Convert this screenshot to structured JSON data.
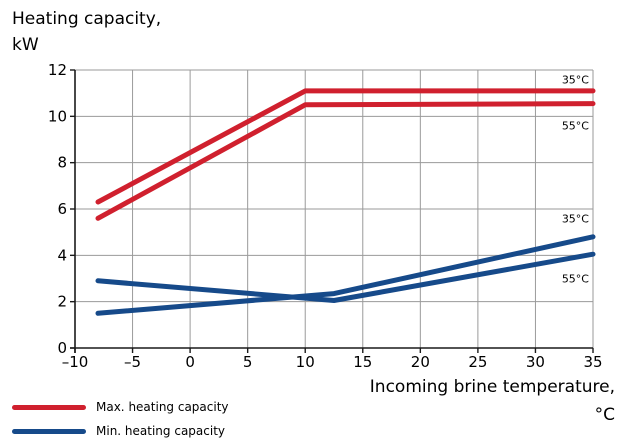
{
  "chart_data": {
    "type": "line",
    "ylabel_lines": [
      "Heating capacity,",
      "kW"
    ],
    "xlabel_lines": [
      "Incoming brine temperature,",
      "°C"
    ],
    "xlim": [
      -10,
      35
    ],
    "ylim": [
      0,
      12
    ],
    "xticks": [
      -10,
      -5,
      0,
      5,
      10,
      15,
      20,
      25,
      30,
      35
    ],
    "xtick_labels": [
      "–10",
      "–5",
      "0",
      "5",
      "10",
      "15",
      "20",
      "25",
      "30",
      "35"
    ],
    "yticks": [
      0,
      2,
      4,
      6,
      8,
      10,
      12
    ],
    "grid": true,
    "legend_position": "bottom-left",
    "series": [
      {
        "group": "max",
        "label": "35°C",
        "color": "#d0202e",
        "x": [
          -8,
          10,
          35
        ],
        "y": [
          6.3,
          11.1,
          11.1
        ]
      },
      {
        "group": "max",
        "label": "55°C",
        "color": "#d0202e",
        "x": [
          -8,
          10,
          35
        ],
        "y": [
          5.6,
          10.5,
          10.55
        ]
      },
      {
        "group": "min",
        "label": "35°C",
        "color": "#164a8a",
        "x": [
          -8,
          12.5,
          35
        ],
        "y": [
          1.5,
          2.35,
          4.8
        ]
      },
      {
        "group": "min",
        "label": "55°C",
        "color": "#164a8a",
        "x": [
          -8,
          12.5,
          35
        ],
        "y": [
          2.9,
          2.05,
          4.05
        ]
      }
    ],
    "legend": [
      {
        "name": "Max. heating capacity",
        "color": "#d0202e"
      },
      {
        "name": "Min. heating capacity",
        "color": "#164a8a"
      }
    ],
    "series_labels": [
      {
        "text": "35°C",
        "y": 11.6
      },
      {
        "text": "55°C",
        "y": 9.6
      },
      {
        "text": "35°C",
        "y": 5.6
      },
      {
        "text": "55°C",
        "y": 3.0
      }
    ]
  }
}
